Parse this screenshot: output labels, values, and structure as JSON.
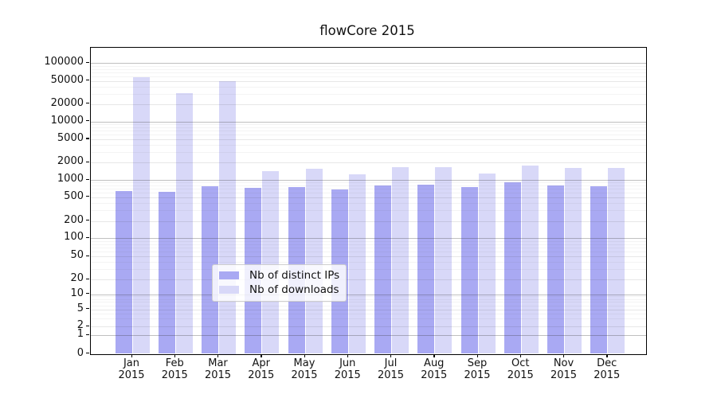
{
  "title": "flowCore 2015",
  "chart_data": {
    "type": "bar",
    "title": "flowCore 2015",
    "subtitle": "",
    "xlabel": "",
    "ylabel": "",
    "year_label": "2015",
    "categories": [
      "Jan",
      "Feb",
      "Mar",
      "Apr",
      "May",
      "Jun",
      "Jul",
      "Aug",
      "Sep",
      "Oct",
      "Nov",
      "Dec"
    ],
    "series": [
      {
        "name": "Nb of distinct IPs",
        "color": "#a9a9f3",
        "values": [
          645,
          620,
          780,
          720,
          760,
          680,
          800,
          820,
          740,
          900,
          800,
          780
        ]
      },
      {
        "name": "Nb of downloads",
        "color": "#d8d8f8",
        "values": [
          58000,
          30500,
          50000,
          1400,
          1560,
          1240,
          1630,
          1650,
          1300,
          1780,
          1580,
          1590
        ]
      }
    ],
    "yscale": "log-like",
    "yticks": [
      0,
      1,
      2,
      5,
      10,
      20,
      50,
      100,
      200,
      500,
      1000,
      2000,
      5000,
      10000,
      20000,
      50000,
      100000
    ],
    "ylim": [
      0,
      186000
    ],
    "grid": "horizontal major + log minor gridlines",
    "legend_position": "lower center inside plot"
  },
  "colors": {
    "ips_bar": "#a9a9f3",
    "downloads_bar": "#d8d8f8",
    "axis": "#000000",
    "grid_major": "#b5b5b5",
    "grid_minor": "#ededed",
    "background": "#ffffff"
  }
}
